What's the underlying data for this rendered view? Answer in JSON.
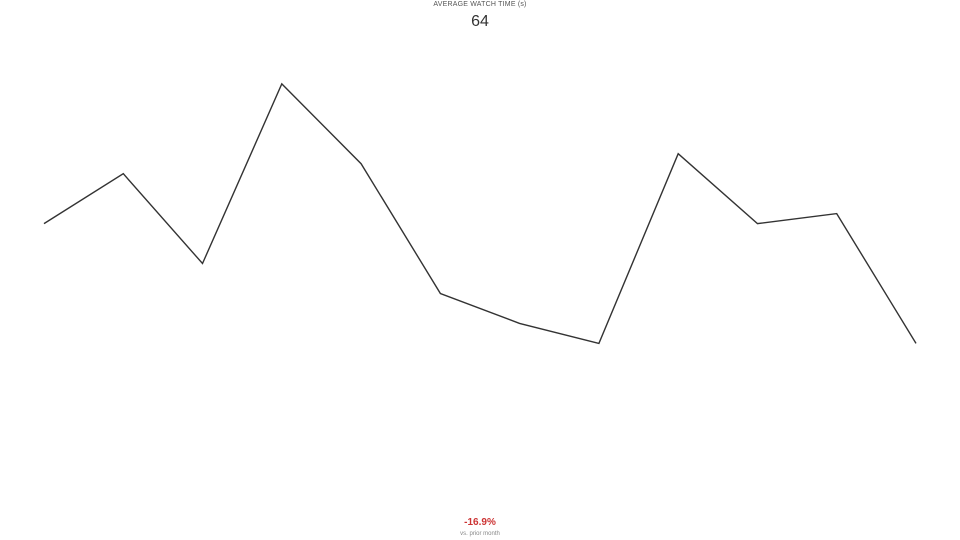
{
  "kpi": {
    "title": "AVERAGE WATCH TIME (s)",
    "value": "64",
    "delta": "-16.9%",
    "delta_caption": "vs. prior month",
    "delta_color": "#cc3333"
  },
  "colors": {
    "line": "#333333"
  },
  "chart_data": {
    "type": "line",
    "title": "AVERAGE WATCH TIME (s)",
    "xlabel": "",
    "ylabel": "",
    "grid": false,
    "axes_visible": false,
    "ylim": [
      0,
      100
    ],
    "series": [
      {
        "values": [
          60,
          70,
          52,
          88,
          72,
          46,
          40,
          36,
          74,
          60,
          62,
          36
        ]
      }
    ]
  }
}
